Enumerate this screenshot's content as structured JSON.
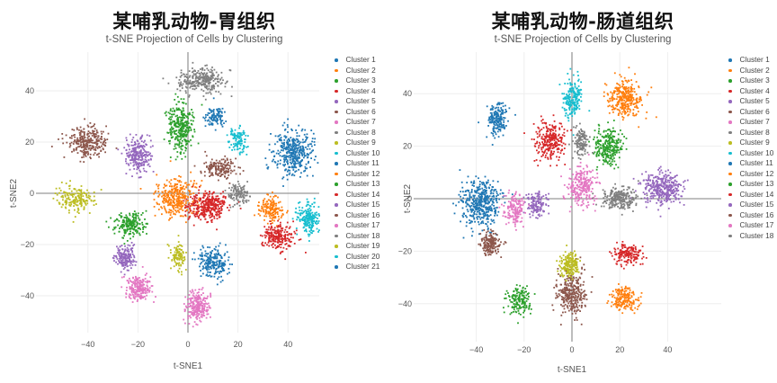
{
  "palette": [
    "#1f77b4",
    "#ff7f0e",
    "#2ca02c",
    "#d62728",
    "#9467bd",
    "#8c564b",
    "#e377c2",
    "#7f7f7f",
    "#bcbd22",
    "#17becf"
  ],
  "charts": [
    {
      "title": "某哺乳动物-胃组织",
      "subtitle": "t-SNE Projection of Cells by Clustering",
      "xlabel": "t-SNE1",
      "ylabel": "t-SNE2",
      "xticks": [
        "-40",
        "-20",
        "0",
        "20",
        "40"
      ],
      "yticks": [
        "40",
        "20",
        "0",
        "-20",
        "-40"
      ],
      "legend": [
        "Cluster 1",
        "Cluster 2",
        "Cluster 3",
        "Cluster 4",
        "Cluster 5",
        "Cluster 6",
        "Cluster 7",
        "Cluster 8",
        "Cluster 9",
        "Cluster 10",
        "Cluster 11",
        "Cluster 12",
        "Cluster 13",
        "Cluster 14",
        "Cluster 15",
        "Cluster 16",
        "Cluster 17",
        "Cluster 18",
        "Cluster 19",
        "Cluster 20",
        "Cluster 21"
      ]
    },
    {
      "title": "某哺乳动物-肠道组织",
      "subtitle": "t-SNE Projection of Cells by Clustering",
      "xlabel": "t-SNE1",
      "ylabel": "t-SNE2",
      "xticks": [
        "-40",
        "-20",
        "0",
        "20",
        "40"
      ],
      "yticks": [
        "40",
        "20",
        "0",
        "-20",
        "-40"
      ],
      "legend": [
        "Cluster 1",
        "Cluster 2",
        "Cluster 3",
        "Cluster 4",
        "Cluster 5",
        "Cluster 6",
        "Cluster 7",
        "Cluster 8",
        "Cluster 9",
        "Cluster 10",
        "Cluster 11",
        "Cluster 12",
        "Cluster 13",
        "Cluster 14",
        "Cluster 15",
        "Cluster 16",
        "Cluster 17",
        "Cluster 18"
      ]
    }
  ],
  "chart_data": [
    {
      "type": "scatter",
      "title": "某哺乳动物-胃组织",
      "subtitle": "t-SNE Projection of Cells by Clustering",
      "xlabel": "t-SNE1",
      "ylabel": "t-SNE2",
      "xlim": [
        -55,
        48
      ],
      "ylim": [
        -55,
        52
      ],
      "xticks": [
        -40,
        -20,
        0,
        20,
        40
      ],
      "yticks": [
        -40,
        -20,
        0,
        20,
        40
      ],
      "grid": true,
      "legend_position": "right",
      "series": [
        {
          "name": "Cluster 1",
          "color": "#1f77b4",
          "center": [
            42,
            16
          ],
          "spread": [
            8,
            9
          ],
          "n": 380
        },
        {
          "name": "Cluster 2",
          "color": "#ff7f0e",
          "center": [
            -5,
            -2
          ],
          "spread": [
            8,
            7
          ],
          "n": 320
        },
        {
          "name": "Cluster 3",
          "color": "#2ca02c",
          "center": [
            -3,
            26
          ],
          "spread": [
            5,
            10
          ],
          "n": 320
        },
        {
          "name": "Cluster 4",
          "color": "#d62728",
          "center": [
            8,
            -5
          ],
          "spread": [
            8,
            6
          ],
          "n": 320
        },
        {
          "name": "Cluster 5",
          "color": "#9467bd",
          "center": [
            -20,
            15
          ],
          "spread": [
            5,
            7
          ],
          "n": 240
        },
        {
          "name": "Cluster 6",
          "color": "#8c564b",
          "center": [
            -40,
            20
          ],
          "spread": [
            8,
            6
          ],
          "n": 280
        },
        {
          "name": "Cluster 7",
          "color": "#e377c2",
          "center": [
            4,
            -44
          ],
          "spread": [
            5,
            6
          ],
          "n": 240
        },
        {
          "name": "Cluster 8",
          "color": "#7f7f7f",
          "center": [
            5,
            44
          ],
          "spread": [
            9,
            5
          ],
          "n": 280
        },
        {
          "name": "Cluster 9",
          "color": "#bcbd22",
          "center": [
            -45,
            -2
          ],
          "spread": [
            8,
            5
          ],
          "n": 180
        },
        {
          "name": "Cluster 10",
          "color": "#17becf",
          "center": [
            48,
            -10
          ],
          "spread": [
            5,
            6
          ],
          "n": 200
        },
        {
          "name": "Cluster 11",
          "color": "#1f77b4",
          "center": [
            10,
            -27
          ],
          "spread": [
            6,
            6
          ],
          "n": 220
        },
        {
          "name": "Cluster 12",
          "color": "#ff7f0e",
          "center": [
            33,
            -6
          ],
          "spread": [
            5,
            5
          ],
          "n": 150
        },
        {
          "name": "Cluster 13",
          "color": "#2ca02c",
          "center": [
            -23,
            -12
          ],
          "spread": [
            6,
            5
          ],
          "n": 200
        },
        {
          "name": "Cluster 14",
          "color": "#d62728",
          "center": [
            36,
            -17
          ],
          "spread": [
            6,
            5
          ],
          "n": 220
        },
        {
          "name": "Cluster 15",
          "color": "#9467bd",
          "center": [
            -25,
            -25
          ],
          "spread": [
            4,
            5
          ],
          "n": 160
        },
        {
          "name": "Cluster 16",
          "color": "#8c564b",
          "center": [
            13,
            10
          ],
          "spread": [
            7,
            4
          ],
          "n": 160
        },
        {
          "name": "Cluster 17",
          "color": "#e377c2",
          "center": [
            -20,
            -37
          ],
          "spread": [
            5,
            5
          ],
          "n": 200
        },
        {
          "name": "Cluster 18",
          "color": "#7f7f7f",
          "center": [
            20,
            0
          ],
          "spread": [
            4,
            4
          ],
          "n": 110
        },
        {
          "name": "Cluster 19",
          "color": "#bcbd22",
          "center": [
            -4,
            -25
          ],
          "spread": [
            3,
            5
          ],
          "n": 100
        },
        {
          "name": "Cluster 20",
          "color": "#17becf",
          "center": [
            20,
            21
          ],
          "spread": [
            4,
            5
          ],
          "n": 110
        },
        {
          "name": "Cluster 21",
          "color": "#1f77b4",
          "center": [
            11,
            30
          ],
          "spread": [
            4,
            4
          ],
          "n": 100
        }
      ]
    },
    {
      "type": "scatter",
      "title": "某哺乳动物-肠道组织",
      "subtitle": "t-SNE Projection of Cells by Clustering",
      "xlabel": "t-SNE1",
      "ylabel": "t-SNE2",
      "xlim": [
        -52,
        48
      ],
      "ylim": [
        -52,
        50
      ],
      "xticks": [
        -40,
        -20,
        0,
        20,
        40
      ],
      "yticks": [
        -40,
        -20,
        0,
        20,
        40
      ],
      "grid": true,
      "legend_position": "right",
      "series": [
        {
          "name": "Cluster 1",
          "color": "#1f77b4",
          "center": [
            -38,
            -2
          ],
          "spread": [
            8,
            9
          ],
          "n": 420
        },
        {
          "name": "Cluster 2",
          "color": "#ff7f0e",
          "center": [
            22,
            38
          ],
          "spread": [
            7,
            7
          ],
          "n": 320
        },
        {
          "name": "Cluster 3",
          "color": "#2ca02c",
          "center": [
            15,
            20
          ],
          "spread": [
            6,
            7
          ],
          "n": 260
        },
        {
          "name": "Cluster 4",
          "color": "#d62728",
          "center": [
            -9,
            22
          ],
          "spread": [
            6,
            7
          ],
          "n": 260
        },
        {
          "name": "Cluster 5",
          "color": "#9467bd",
          "center": [
            38,
            4
          ],
          "spread": [
            8,
            6
          ],
          "n": 340
        },
        {
          "name": "Cluster 6",
          "color": "#8c564b",
          "center": [
            0,
            -36
          ],
          "spread": [
            6,
            8
          ],
          "n": 300
        },
        {
          "name": "Cluster 7",
          "color": "#e377c2",
          "center": [
            4,
            5
          ],
          "spread": [
            6,
            8
          ],
          "n": 240
        },
        {
          "name": "Cluster 8",
          "color": "#7f7f7f",
          "center": [
            20,
            0
          ],
          "spread": [
            7,
            4
          ],
          "n": 220
        },
        {
          "name": "Cluster 9",
          "color": "#bcbd22",
          "center": [
            -1,
            -25
          ],
          "spread": [
            4,
            5
          ],
          "n": 180
        },
        {
          "name": "Cluster 10",
          "color": "#17becf",
          "center": [
            0,
            38
          ],
          "spread": [
            4,
            8
          ],
          "n": 200
        },
        {
          "name": "Cluster 11",
          "color": "#1f77b4",
          "center": [
            -31,
            30
          ],
          "spread": [
            4,
            6
          ],
          "n": 180
        },
        {
          "name": "Cluster 12",
          "color": "#ff7f0e",
          "center": [
            22,
            -38
          ],
          "spread": [
            6,
            4
          ],
          "n": 180
        },
        {
          "name": "Cluster 13",
          "color": "#2ca02c",
          "center": [
            -22,
            -39
          ],
          "spread": [
            5,
            5
          ],
          "n": 160
        },
        {
          "name": "Cluster 14",
          "color": "#d62728",
          "center": [
            23,
            -21
          ],
          "spread": [
            6,
            4
          ],
          "n": 160
        },
        {
          "name": "Cluster 15",
          "color": "#9467bd",
          "center": [
            -15,
            -2
          ],
          "spread": [
            4,
            5
          ],
          "n": 130
        },
        {
          "name": "Cluster 16",
          "color": "#8c564b",
          "center": [
            -34,
            -17
          ],
          "spread": [
            4,
            4
          ],
          "n": 170
        },
        {
          "name": "Cluster 17",
          "color": "#e377c2",
          "center": [
            -24,
            -4
          ],
          "spread": [
            4,
            6
          ],
          "n": 150
        },
        {
          "name": "Cluster 18",
          "color": "#7f7f7f",
          "center": [
            4,
            22
          ],
          "spread": [
            3,
            6
          ],
          "n": 130
        }
      ]
    }
  ]
}
